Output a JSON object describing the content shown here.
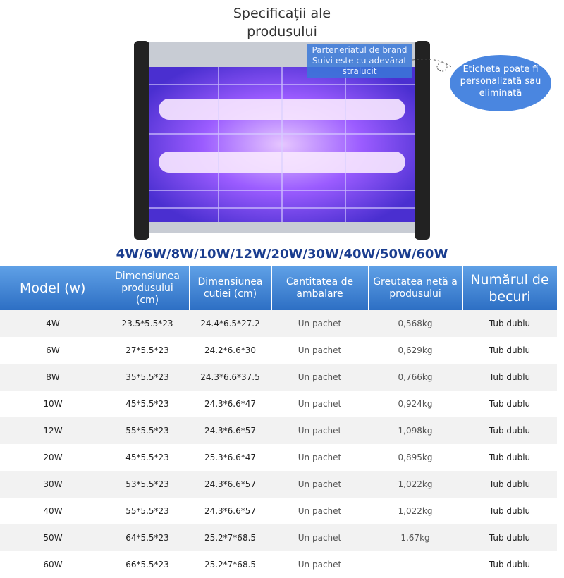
{
  "header": {
    "title": "Specificații ale produsului"
  },
  "product": {
    "brand_label": "Parteneriatul de brand Suivi este cu adevărat strălucit",
    "callout": "Eticheta poate fi personalizată sau eliminată",
    "wattages": "4W/6W/8W/10W/12W/20W/30W/40W/50W/60W"
  },
  "table": {
    "columns": [
      "Model (w)",
      "Dimensiunea produsului (cm)",
      "Dimensiunea cutiei (cm)",
      "Cantitatea de ambalare",
      "Greutatea netă a produsului",
      "Numărul de becuri"
    ],
    "rows": [
      [
        "4W",
        "23.5*5.5*23",
        "24.4*6.5*27.2",
        "Un pachet",
        "0,568kg",
        "Tub dublu"
      ],
      [
        "6W",
        "27*5.5*23",
        "24.2*6.6*30",
        "Un pachet",
        "0,629kg",
        "Tub dublu"
      ],
      [
        "8W",
        "35*5.5*23",
        "24.3*6.6*37.5",
        "Un pachet",
        "0,766kg",
        "Tub dublu"
      ],
      [
        "10W",
        "45*5.5*23",
        "24.3*6.6*47",
        "Un pachet",
        "0,924kg",
        "Tub dublu"
      ],
      [
        "12W",
        "55*5.5*23",
        "24.3*6.6*57",
        "Un pachet",
        "1,098kg",
        "Tub dublu"
      ],
      [
        "20W",
        "45*5.5*23",
        "25.3*6.6*47",
        "Un pachet",
        "0,895kg",
        "Tub dublu"
      ],
      [
        "30W",
        "53*5.5*23",
        "24.3*6.6*57",
        "Un pachet",
        "1,022kg",
        "Tub dublu"
      ],
      [
        "40W",
        "55*5.5*23",
        "24.3*6.6*57",
        "Un pachet",
        "1,022kg",
        "Tub dublu"
      ],
      [
        "50W",
        "64*5.5*23",
        "25.2*7*68.5",
        "Un pachet",
        "1,67kg",
        "Tub dublu"
      ],
      [
        "60W",
        "66*5.5*23",
        "25.2*7*68.5",
        "Un pachet",
        "",
        "Tub dublu"
      ]
    ]
  }
}
